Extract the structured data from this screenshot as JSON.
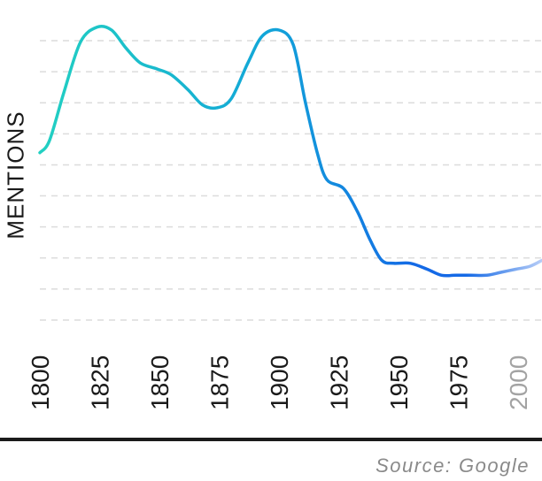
{
  "chart_data": {
    "type": "line",
    "ylabel": "MENTIONS",
    "xlabel": "",
    "x_ticks": [
      "1800",
      "1825",
      "1850",
      "1875",
      "1900",
      "1925",
      "1950",
      "1975",
      "2000"
    ],
    "projected_tick": "2000",
    "xlim": [
      1800,
      2010
    ],
    "ylim": [
      0,
      100
    ],
    "grid": true,
    "legend": "none",
    "series": [
      {
        "x": [
          1800,
          1804,
          1810,
          1817,
          1824,
          1830,
          1836,
          1842,
          1849,
          1855,
          1862,
          1868,
          1874,
          1880,
          1887,
          1893,
          1900,
          1906,
          1911,
          1916,
          1920,
          1927,
          1933,
          1938,
          1943,
          1948,
          1955,
          1962,
          1968,
          1974,
          1980,
          1987,
          1993,
          1999,
          2005,
          2010
        ],
        "y": [
          56,
          60,
          76,
          93,
          98,
          97,
          91,
          86,
          84,
          82,
          77,
          72,
          71,
          74,
          86,
          95,
          97,
          92,
          73,
          56,
          47,
          44,
          36,
          27,
          20,
          19,
          19,
          17,
          15,
          15,
          15,
          15,
          16,
          17,
          18,
          20
        ]
      }
    ],
    "projection_from": 1978,
    "colors": {
      "line_start": "#22d0c2",
      "line_mid": "#12a6d8",
      "line_end": "#1469e6",
      "projection": "#b7cdf7",
      "grid": "#dcdcdc",
      "tick_text": "#1a1a1a",
      "projected_tick_text": "#a3a3a3"
    }
  },
  "source": "Source: Google"
}
